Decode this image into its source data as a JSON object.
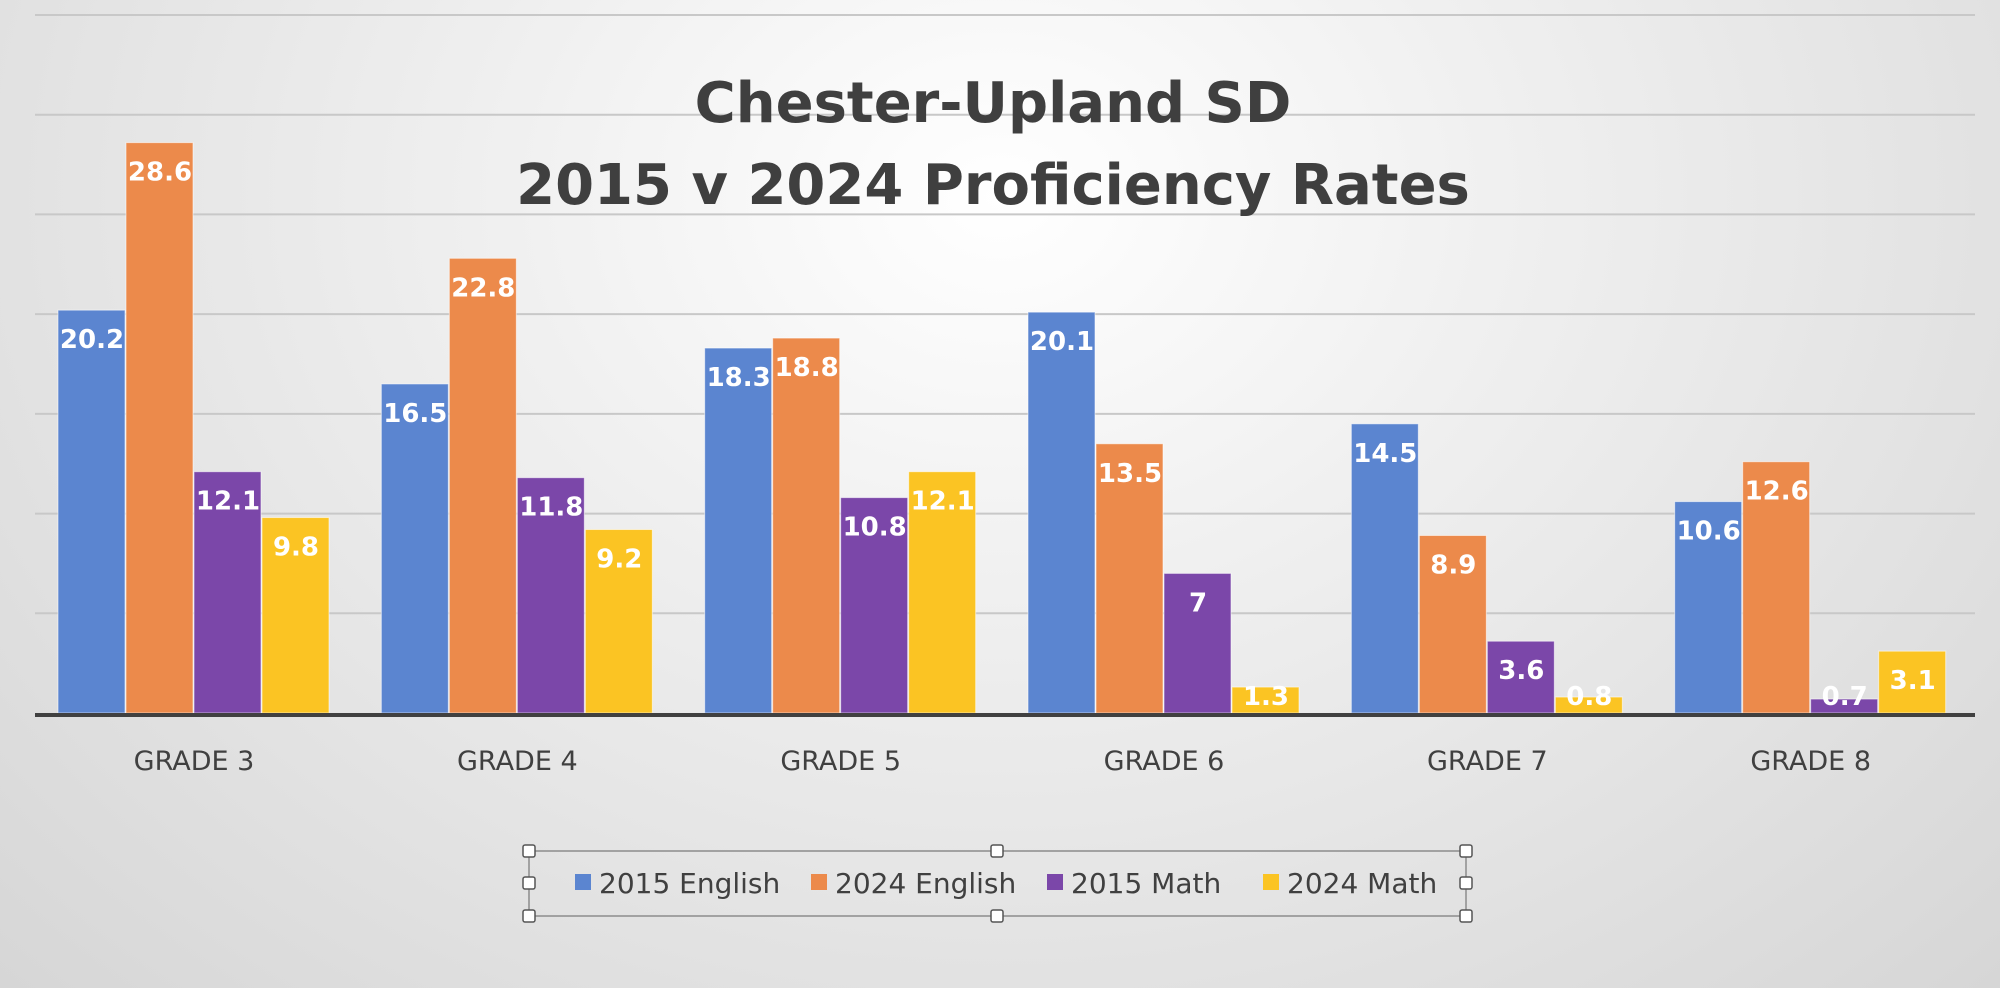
{
  "chart_data": {
    "type": "bar",
    "title_lines": [
      "Chester-Upland SD",
      "2015 v 2024 Proficiency Rates"
    ],
    "categories": [
      "GRADE 3",
      "GRADE 4",
      "GRADE 5",
      "GRADE 6",
      "GRADE 7",
      "GRADE 8"
    ],
    "series": [
      {
        "name": "2015 English",
        "color": "#5b85d0",
        "values": [
          20.2,
          16.5,
          18.3,
          20.1,
          14.5,
          10.6
        ]
      },
      {
        "name": "2024 English",
        "color": "#ec8a4b",
        "values": [
          28.6,
          22.8,
          18.8,
          13.5,
          8.9,
          12.6
        ]
      },
      {
        "name": "2015 Math",
        "color": "#7b47a9",
        "values": [
          12.1,
          11.8,
          10.8,
          7,
          3.6,
          0.7
        ]
      },
      {
        "name": "2024 Math",
        "color": "#fbc423",
        "values": [
          9.8,
          9.2,
          12.1,
          1.3,
          0.8,
          3.1
        ]
      }
    ],
    "ylim": [
      0,
      35
    ],
    "grid": true,
    "legend_position": "bottom",
    "xlabel": "",
    "ylabel": ""
  }
}
